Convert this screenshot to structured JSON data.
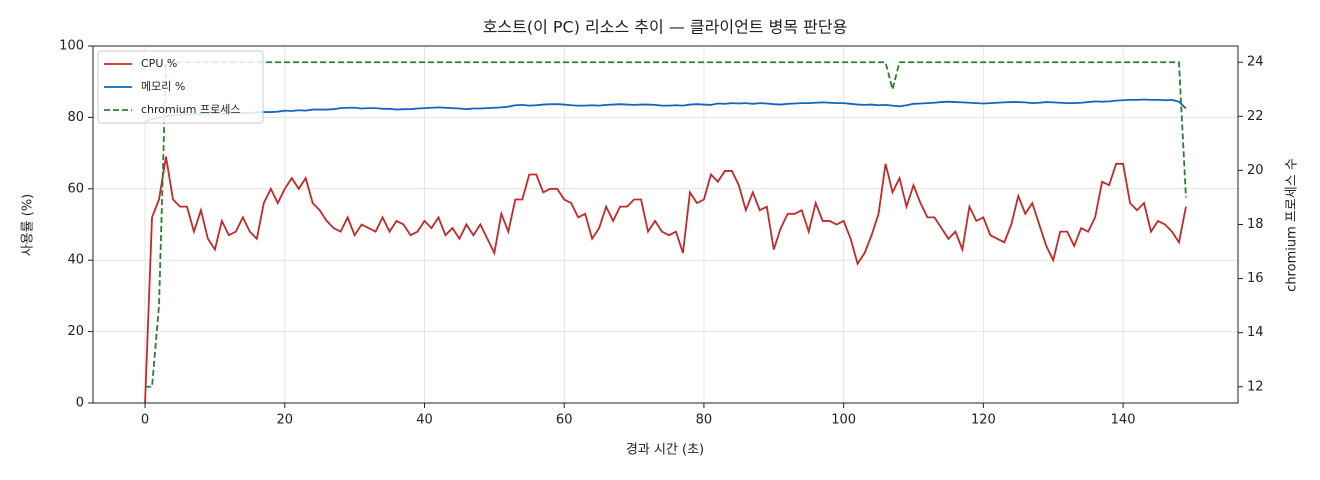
{
  "chart_data": {
    "type": "line",
    "title": "호스트(이 PC) 리소스 추이 — 클라이언트 병목 판단용",
    "x_label": "경과 시간 (초)",
    "y_label": "사용률 (%)",
    "y2_label": "chromium 프로세스 수",
    "x": [
      0,
      1,
      2,
      3,
      4,
      5,
      6,
      7,
      8,
      9,
      10,
      11,
      12,
      13,
      14,
      15,
      16,
      17,
      18,
      19,
      20,
      21,
      22,
      23,
      24,
      25,
      26,
      27,
      28,
      29,
      30,
      31,
      32,
      33,
      34,
      35,
      36,
      37,
      38,
      39,
      40,
      41,
      42,
      43,
      44,
      45,
      46,
      47,
      48,
      49,
      50,
      51,
      52,
      53,
      54,
      55,
      56,
      57,
      58,
      59,
      60,
      61,
      62,
      63,
      64,
      65,
      66,
      67,
      68,
      69,
      70,
      71,
      72,
      73,
      74,
      75,
      76,
      77,
      78,
      79,
      80,
      81,
      82,
      83,
      84,
      85,
      86,
      87,
      88,
      89,
      90,
      91,
      92,
      93,
      94,
      95,
      96,
      97,
      98,
      99,
      100,
      101,
      102,
      103,
      104,
      105,
      106,
      107,
      108,
      109,
      110,
      111,
      112,
      113,
      114,
      115,
      116,
      117,
      118,
      119,
      120,
      121,
      122,
      123,
      124,
      125,
      126,
      127,
      128,
      129,
      130,
      131,
      132,
      133,
      134,
      135,
      136,
      137,
      138,
      139,
      140,
      141,
      142,
      143,
      144,
      145,
      146,
      147,
      148,
      149
    ],
    "series": [
      {
        "name": "CPU %",
        "color": "#c62828",
        "linestyle": "solid",
        "axis": "y",
        "values": [
          0,
          52,
          57,
          69,
          57,
          55,
          55,
          48,
          54,
          46,
          43,
          51,
          47,
          48,
          52,
          48,
          46,
          56,
          60,
          56,
          60,
          63,
          60,
          63,
          56,
          54,
          51,
          49,
          48,
          52,
          47,
          50,
          49,
          48,
          52,
          48,
          51,
          50,
          47,
          48,
          51,
          49,
          52,
          47,
          49,
          46,
          50,
          47,
          50,
          46,
          42,
          53,
          48,
          57,
          57,
          64,
          64,
          59,
          60,
          60,
          57,
          56,
          52,
          53,
          46,
          49,
          55,
          51,
          55,
          55,
          57,
          57,
          48,
          51,
          48,
          47,
          48,
          42,
          59,
          56,
          57,
          64,
          62,
          65,
          65,
          61,
          54,
          59,
          54,
          55,
          43,
          49,
          53,
          53,
          54,
          48,
          56,
          51,
          51,
          50,
          51,
          46,
          39,
          42,
          47,
          53,
          67,
          59,
          63,
          55,
          61,
          56,
          52,
          52,
          49,
          46,
          48,
          43,
          55,
          51,
          52,
          47,
          46,
          45,
          50,
          58,
          53,
          56,
          50,
          44,
          40,
          48,
          48,
          44,
          49,
          48,
          52,
          62,
          61,
          67,
          67,
          56,
          54,
          56,
          48,
          51,
          50,
          48,
          45,
          55
        ]
      },
      {
        "name": "메모리 %",
        "color": "#1565c0",
        "linestyle": "solid",
        "axis": "y",
        "values": [
          79.0,
          79.5,
          80.0,
          80.3,
          80.6,
          80.8,
          80.9,
          81.0,
          81.0,
          81.1,
          81.2,
          81.0,
          81.3,
          81.2,
          81.3,
          81.2,
          81.4,
          81.5,
          81.5,
          81.6,
          81.9,
          81.8,
          82.0,
          81.9,
          82.2,
          82.2,
          82.2,
          82.3,
          82.6,
          82.7,
          82.7,
          82.5,
          82.6,
          82.6,
          82.4,
          82.4,
          82.2,
          82.3,
          82.3,
          82.5,
          82.6,
          82.7,
          82.8,
          82.7,
          82.6,
          82.5,
          82.3,
          82.5,
          82.5,
          82.6,
          82.7,
          82.8,
          83.0,
          83.4,
          83.5,
          83.3,
          83.4,
          83.6,
          83.7,
          83.7,
          83.6,
          83.4,
          83.3,
          83.3,
          83.4,
          83.3,
          83.5,
          83.6,
          83.7,
          83.6,
          83.5,
          83.6,
          83.6,
          83.5,
          83.3,
          83.3,
          83.4,
          83.3,
          83.6,
          83.7,
          83.6,
          83.5,
          83.9,
          83.8,
          84.0,
          83.9,
          84.0,
          83.8,
          84.0,
          83.9,
          83.7,
          83.6,
          83.8,
          83.9,
          84.0,
          84.0,
          84.1,
          84.2,
          84.1,
          84.0,
          84.0,
          83.8,
          83.6,
          83.5,
          83.6,
          83.4,
          83.5,
          83.3,
          83.1,
          83.4,
          83.8,
          83.9,
          84.0,
          84.1,
          84.3,
          84.4,
          84.3,
          84.2,
          84.1,
          84.0,
          83.9,
          84.0,
          84.1,
          84.2,
          84.3,
          84.3,
          84.2,
          84.0,
          84.1,
          84.3,
          84.2,
          84.1,
          84.0,
          84.0,
          84.1,
          84.3,
          84.5,
          84.4,
          84.5,
          84.7,
          84.8,
          84.9,
          84.9,
          85.0,
          84.9,
          84.9,
          84.8,
          84.9,
          84.4,
          82.5
        ]
      },
      {
        "name": "chromium 프로세스",
        "color": "#2e7d32",
        "linestyle": "dashed",
        "axis": "y2",
        "values": [
          12,
          12,
          15,
          24,
          24,
          24,
          24,
          24,
          24,
          24,
          24,
          24,
          24,
          24,
          24,
          24,
          24,
          24,
          24,
          24,
          24,
          24,
          24,
          24,
          24,
          24,
          24,
          24,
          24,
          24,
          24,
          24,
          24,
          24,
          24,
          24,
          24,
          24,
          24,
          24,
          24,
          24,
          24,
          24,
          24,
          24,
          24,
          24,
          24,
          24,
          24,
          24,
          24,
          24,
          24,
          24,
          24,
          24,
          24,
          24,
          24,
          24,
          24,
          24,
          24,
          24,
          24,
          24,
          24,
          24,
          24,
          24,
          24,
          24,
          24,
          24,
          24,
          24,
          24,
          24,
          24,
          24,
          24,
          24,
          24,
          24,
          24,
          24,
          24,
          24,
          24,
          24,
          24,
          24,
          24,
          24,
          24,
          24,
          24,
          24,
          24,
          24,
          24,
          24,
          24,
          24,
          24,
          23,
          24,
          24,
          24,
          24,
          24,
          24,
          24,
          24,
          24,
          24,
          24,
          24,
          24,
          24,
          24,
          24,
          24,
          24,
          24,
          24,
          24,
          24,
          24,
          24,
          24,
          24,
          24,
          24,
          24,
          24,
          24,
          24,
          24,
          24,
          24,
          24,
          24,
          24,
          24,
          24,
          24,
          19
        ]
      }
    ],
    "xlim": [
      -7.45,
      156.45
    ],
    "xticks": [
      0,
      20,
      40,
      60,
      80,
      100,
      120,
      140
    ],
    "ylim": [
      0,
      100
    ],
    "yticks": [
      0,
      20,
      40,
      60,
      80,
      100
    ],
    "y2lim": [
      11.4,
      24.6
    ],
    "y2ticks": [
      12,
      14,
      16,
      18,
      20,
      22,
      24
    ],
    "grid": true,
    "legend": "upper left"
  }
}
